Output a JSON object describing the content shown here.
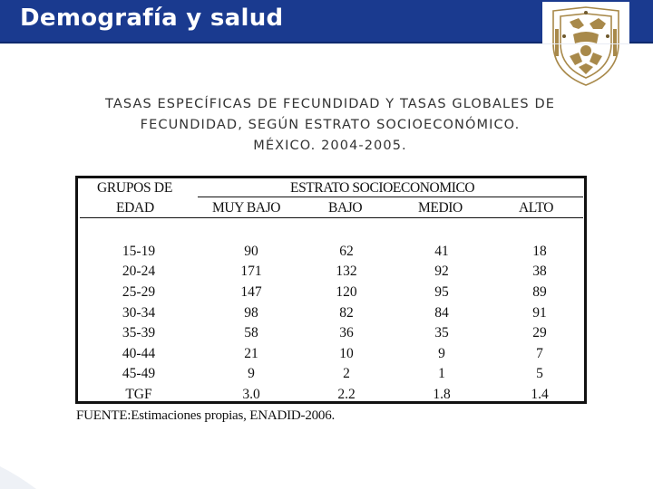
{
  "header": {
    "title": "Demografía y salud"
  },
  "slide": {
    "title_lines": [
      "TASAS ESPECÍFICAS DE FECUNDIDAD Y TASAS GLOBALES DE",
      "FECUNDIDAD, SEGÚN ESTRATO SOCIOECONÓMICO.",
      "MÉXICO. 2004-2005."
    ]
  },
  "table": {
    "row_header_line1": "GRUPOS DE",
    "row_header_line2": "EDAD",
    "group_header": "ESTRATO SOCIOECONOMICO",
    "columns": [
      "MUY BAJO",
      "BAJO",
      "MEDIO",
      "ALTO"
    ],
    "rows": [
      {
        "label": "15-19",
        "values": [
          "90",
          "62",
          "41",
          "18"
        ]
      },
      {
        "label": "20-24",
        "values": [
          "171",
          "132",
          "92",
          "38"
        ]
      },
      {
        "label": "25-29",
        "values": [
          "147",
          "120",
          "95",
          "89"
        ]
      },
      {
        "label": "30-34",
        "values": [
          "98",
          "82",
          "84",
          "91"
        ]
      },
      {
        "label": "35-39",
        "values": [
          "58",
          "36",
          "35",
          "29"
        ]
      },
      {
        "label": "40-44",
        "values": [
          "21",
          "10",
          "9",
          "7"
        ]
      },
      {
        "label": "45-49",
        "values": [
          "9",
          "2",
          "1",
          "5"
        ]
      },
      {
        "label": "TGF",
        "values": [
          "3.0",
          "2.2",
          "1.8",
          "1.4"
        ]
      }
    ]
  },
  "source": "FUENTE:Estimaciones propias, ENADID-2006.",
  "colors": {
    "header_bg": "#1a3a8f",
    "header_text": "#ffffff",
    "logo_gold": "#a8894a"
  },
  "icons": {
    "logo": "university-crest-icon"
  }
}
